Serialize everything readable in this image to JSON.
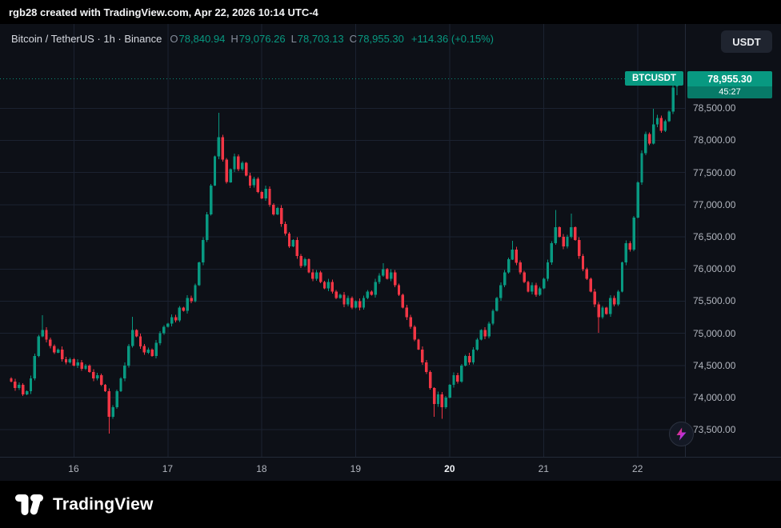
{
  "attribution": "rgb28 created with TradingView.com, Apr 22, 2026 10:14 UTC-4",
  "header": {
    "symbol_title": "Bitcoin / TetherUS · 1h · Binance",
    "ohlc": [
      {
        "label": "O",
        "value": "78,840.94"
      },
      {
        "label": "H",
        "value": "79,076.26"
      },
      {
        "label": "L",
        "value": "78,703.13"
      },
      {
        "label": "C",
        "value": "78,955.30"
      }
    ],
    "change": "+114.36 (+0.15%)",
    "currency_button": "USDT"
  },
  "price_label": {
    "symbol": "BTCUSDT",
    "price": "78,955.30",
    "countdown": "45:27"
  },
  "footer": {
    "brand": "TradingView"
  },
  "chart_data": {
    "type": "candlestick",
    "title": "Bitcoin / TetherUS",
    "exchange": "Binance",
    "interval": "1h",
    "up_color": "#089981",
    "down_color": "#f23645",
    "countdown_bg": "#077a68",
    "grid": true,
    "legend_position": "none",
    "y_axis_range": [
      73080,
      79810
    ],
    "y_ticks": [
      {
        "value": 78500,
        "label": "78,500.00"
      },
      {
        "value": 78000,
        "label": "78,000.00"
      },
      {
        "value": 77500,
        "label": "77,500.00"
      },
      {
        "value": 77000,
        "label": "77,000.00"
      },
      {
        "value": 76500,
        "label": "76,500.00"
      },
      {
        "value": 76000,
        "label": "76,000.00"
      },
      {
        "value": 75500,
        "label": "75,500.00"
      },
      {
        "value": 75000,
        "label": "75,000.00"
      },
      {
        "value": 74500,
        "label": "74,500.00"
      },
      {
        "value": 74000,
        "label": "74,000.00"
      },
      {
        "value": 73500,
        "label": "73,500.00"
      }
    ],
    "x_ticks": [
      {
        "label": "16",
        "index": 16,
        "bold": false
      },
      {
        "label": "17",
        "index": 40,
        "bold": false
      },
      {
        "label": "18",
        "index": 64,
        "bold": false
      },
      {
        "label": "19",
        "index": 88,
        "bold": false
      },
      {
        "label": "20",
        "index": 112,
        "bold": true
      },
      {
        "label": "21",
        "index": 136,
        "bold": false
      },
      {
        "label": "22",
        "index": 160,
        "bold": false
      }
    ],
    "last_price": 78955.3,
    "last_candle": {
      "open": 78840.94,
      "high": 79076.26,
      "low": 78703.13,
      "close": 78955.3
    },
    "first_open": 74300,
    "closes": [
      74250,
      74150,
      74200,
      74050,
      74100,
      74300,
      74650,
      74950,
      75050,
      74900,
      74800,
      74700,
      74750,
      74600,
      74550,
      74600,
      74500,
      74550,
      74450,
      74500,
      74400,
      74300,
      74350,
      74200,
      74100,
      73700,
      73850,
      74100,
      74300,
      74500,
      74800,
      75050,
      74950,
      74800,
      74700,
      74750,
      74650,
      74850,
      75000,
      75100,
      75150,
      75250,
      75200,
      75400,
      75350,
      75550,
      75500,
      75750,
      76100,
      76450,
      76850,
      77300,
      77750,
      78050,
      77700,
      77350,
      77550,
      77750,
      77550,
      77650,
      77450,
      77300,
      77400,
      77200,
      77100,
      77250,
      77000,
      76850,
      76950,
      76700,
      76550,
      76350,
      76450,
      76200,
      76050,
      76150,
      75950,
      75850,
      75950,
      75800,
      75700,
      75800,
      75650,
      75550,
      75600,
      75450,
      75550,
      75400,
      75500,
      75400,
      75550,
      75650,
      75600,
      75800,
      75900,
      76000,
      75850,
      75950,
      75750,
      75600,
      75400,
      75250,
      75100,
      74900,
      74750,
      74550,
      74400,
      74150,
      73900,
      74050,
      73850,
      74000,
      74200,
      74350,
      74250,
      74500,
      74650,
      74550,
      74750,
      74900,
      75050,
      74950,
      75150,
      75350,
      75550,
      75750,
      75950,
      76150,
      76300,
      76100,
      75950,
      75800,
      75650,
      75750,
      75600,
      75700,
      75850,
      76100,
      76400,
      76650,
      76500,
      76350,
      76500,
      76650,
      76450,
      76200,
      76000,
      75850,
      75650,
      75450,
      75250,
      75400,
      75300,
      75550,
      75450,
      75650,
      76100,
      76400,
      76300,
      76800,
      77350,
      77800,
      78100,
      77950,
      78250,
      78350,
      78150,
      78300,
      78450,
      78820,
      78955.3
    ],
    "wick_high_overrides": {
      "8": 75280,
      "31": 75260,
      "53": 78430,
      "95": 76090,
      "128": 76440,
      "139": 76920,
      "143": 76860,
      "164": 78490
    },
    "wick_low_overrides": {
      "25": 73440,
      "108": 73700,
      "110": 73670,
      "150": 75010
    }
  }
}
